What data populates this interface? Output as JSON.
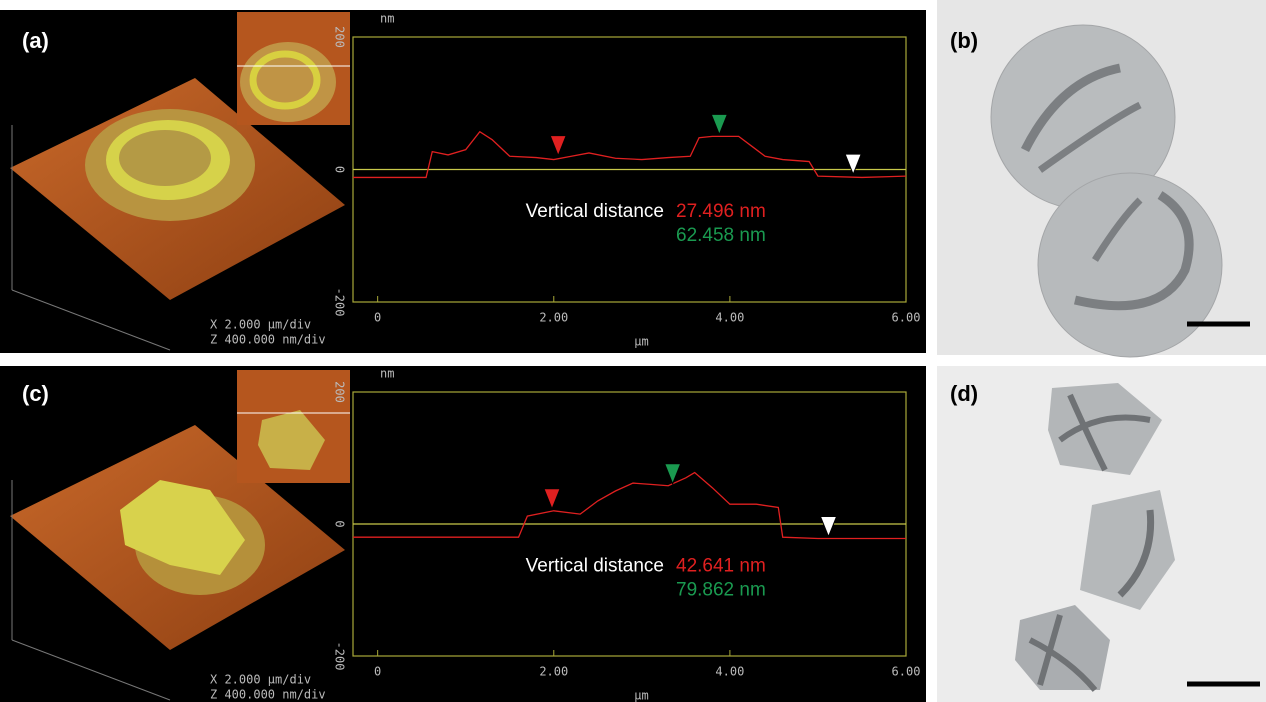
{
  "chart_data": [
    {
      "type": "line",
      "x_label": "µm",
      "y_label": "nm",
      "xlim": [
        -0.28,
        6
      ],
      "ylim": [
        -200,
        200
      ],
      "xticks": [
        0,
        {
          "value": 2,
          "label": "2.00"
        },
        {
          "value": 4,
          "label": "4.00"
        },
        {
          "value": 6,
          "label": "6.00"
        }
      ],
      "yticks": [
        -200,
        0,
        200
      ],
      "series": [
        {
          "color": "#e02020",
          "x": [
            -0.28,
            0.55,
            0.62,
            0.8,
            1.0,
            1.16,
            1.3,
            1.5,
            1.8,
            2.0,
            2.2,
            2.4,
            2.7,
            3.0,
            3.3,
            3.55,
            3.65,
            3.8,
            4.1,
            4.25,
            4.4,
            4.6,
            4.9,
            5.0,
            5.5,
            6.0
          ],
          "values": [
            -12,
            -12,
            27,
            22,
            30,
            57,
            45,
            20,
            18,
            15,
            20,
            25,
            17,
            15,
            18,
            20,
            48,
            50,
            50,
            35,
            20,
            15,
            12,
            -10,
            -12,
            -10
          ]
        }
      ],
      "markers": [
        {
          "x": 2.05,
          "y": 18,
          "color": "#e02020"
        },
        {
          "x": 3.88,
          "y": 50,
          "color": "#1a9a50"
        },
        {
          "x": 5.4,
          "y": -10,
          "color": "#ffffff"
        }
      ],
      "annotation": {
        "label": "Vertical distance",
        "values": [
          "27.496 nm",
          "62.458 nm"
        ]
      }
    },
    {
      "type": "line",
      "x_label": "µm",
      "y_label": "nm",
      "xlim": [
        -0.28,
        6
      ],
      "ylim": [
        -200,
        200
      ],
      "xticks": [
        0,
        {
          "value": 2,
          "label": "2.00"
        },
        {
          "value": 4,
          "label": "4.00"
        },
        {
          "value": 6,
          "label": "6.00"
        }
      ],
      "yticks": [
        -200,
        0,
        200
      ],
      "series": [
        {
          "color": "#e02020",
          "x": [
            -0.28,
            1.6,
            1.7,
            2.0,
            2.3,
            2.5,
            2.7,
            2.9,
            3.1,
            3.3,
            3.5,
            3.6,
            3.8,
            4.0,
            4.3,
            4.55,
            4.6,
            5.0,
            6.0
          ],
          "values": [
            -20,
            -20,
            12,
            20,
            15,
            35,
            50,
            62,
            60,
            58,
            70,
            78,
            55,
            30,
            30,
            25,
            -20,
            -22,
            -22
          ]
        }
      ],
      "markers": [
        {
          "x": 1.98,
          "y": 20,
          "color": "#e02020"
        },
        {
          "x": 3.35,
          "y": 58,
          "color": "#1a9a50"
        },
        {
          "x": 5.12,
          "y": -22,
          "color": "#ffffff"
        }
      ],
      "annotation": {
        "label": "Vertical distance",
        "values": [
          "42.641 nm",
          "79.862 nm"
        ]
      }
    }
  ],
  "panel_labels": [
    "(a)",
    "(b)",
    "(c)",
    "(d)"
  ],
  "afm_scale": {
    "x": "X  2.000 µm/div",
    "z": "Z  400.000 nm/div"
  }
}
